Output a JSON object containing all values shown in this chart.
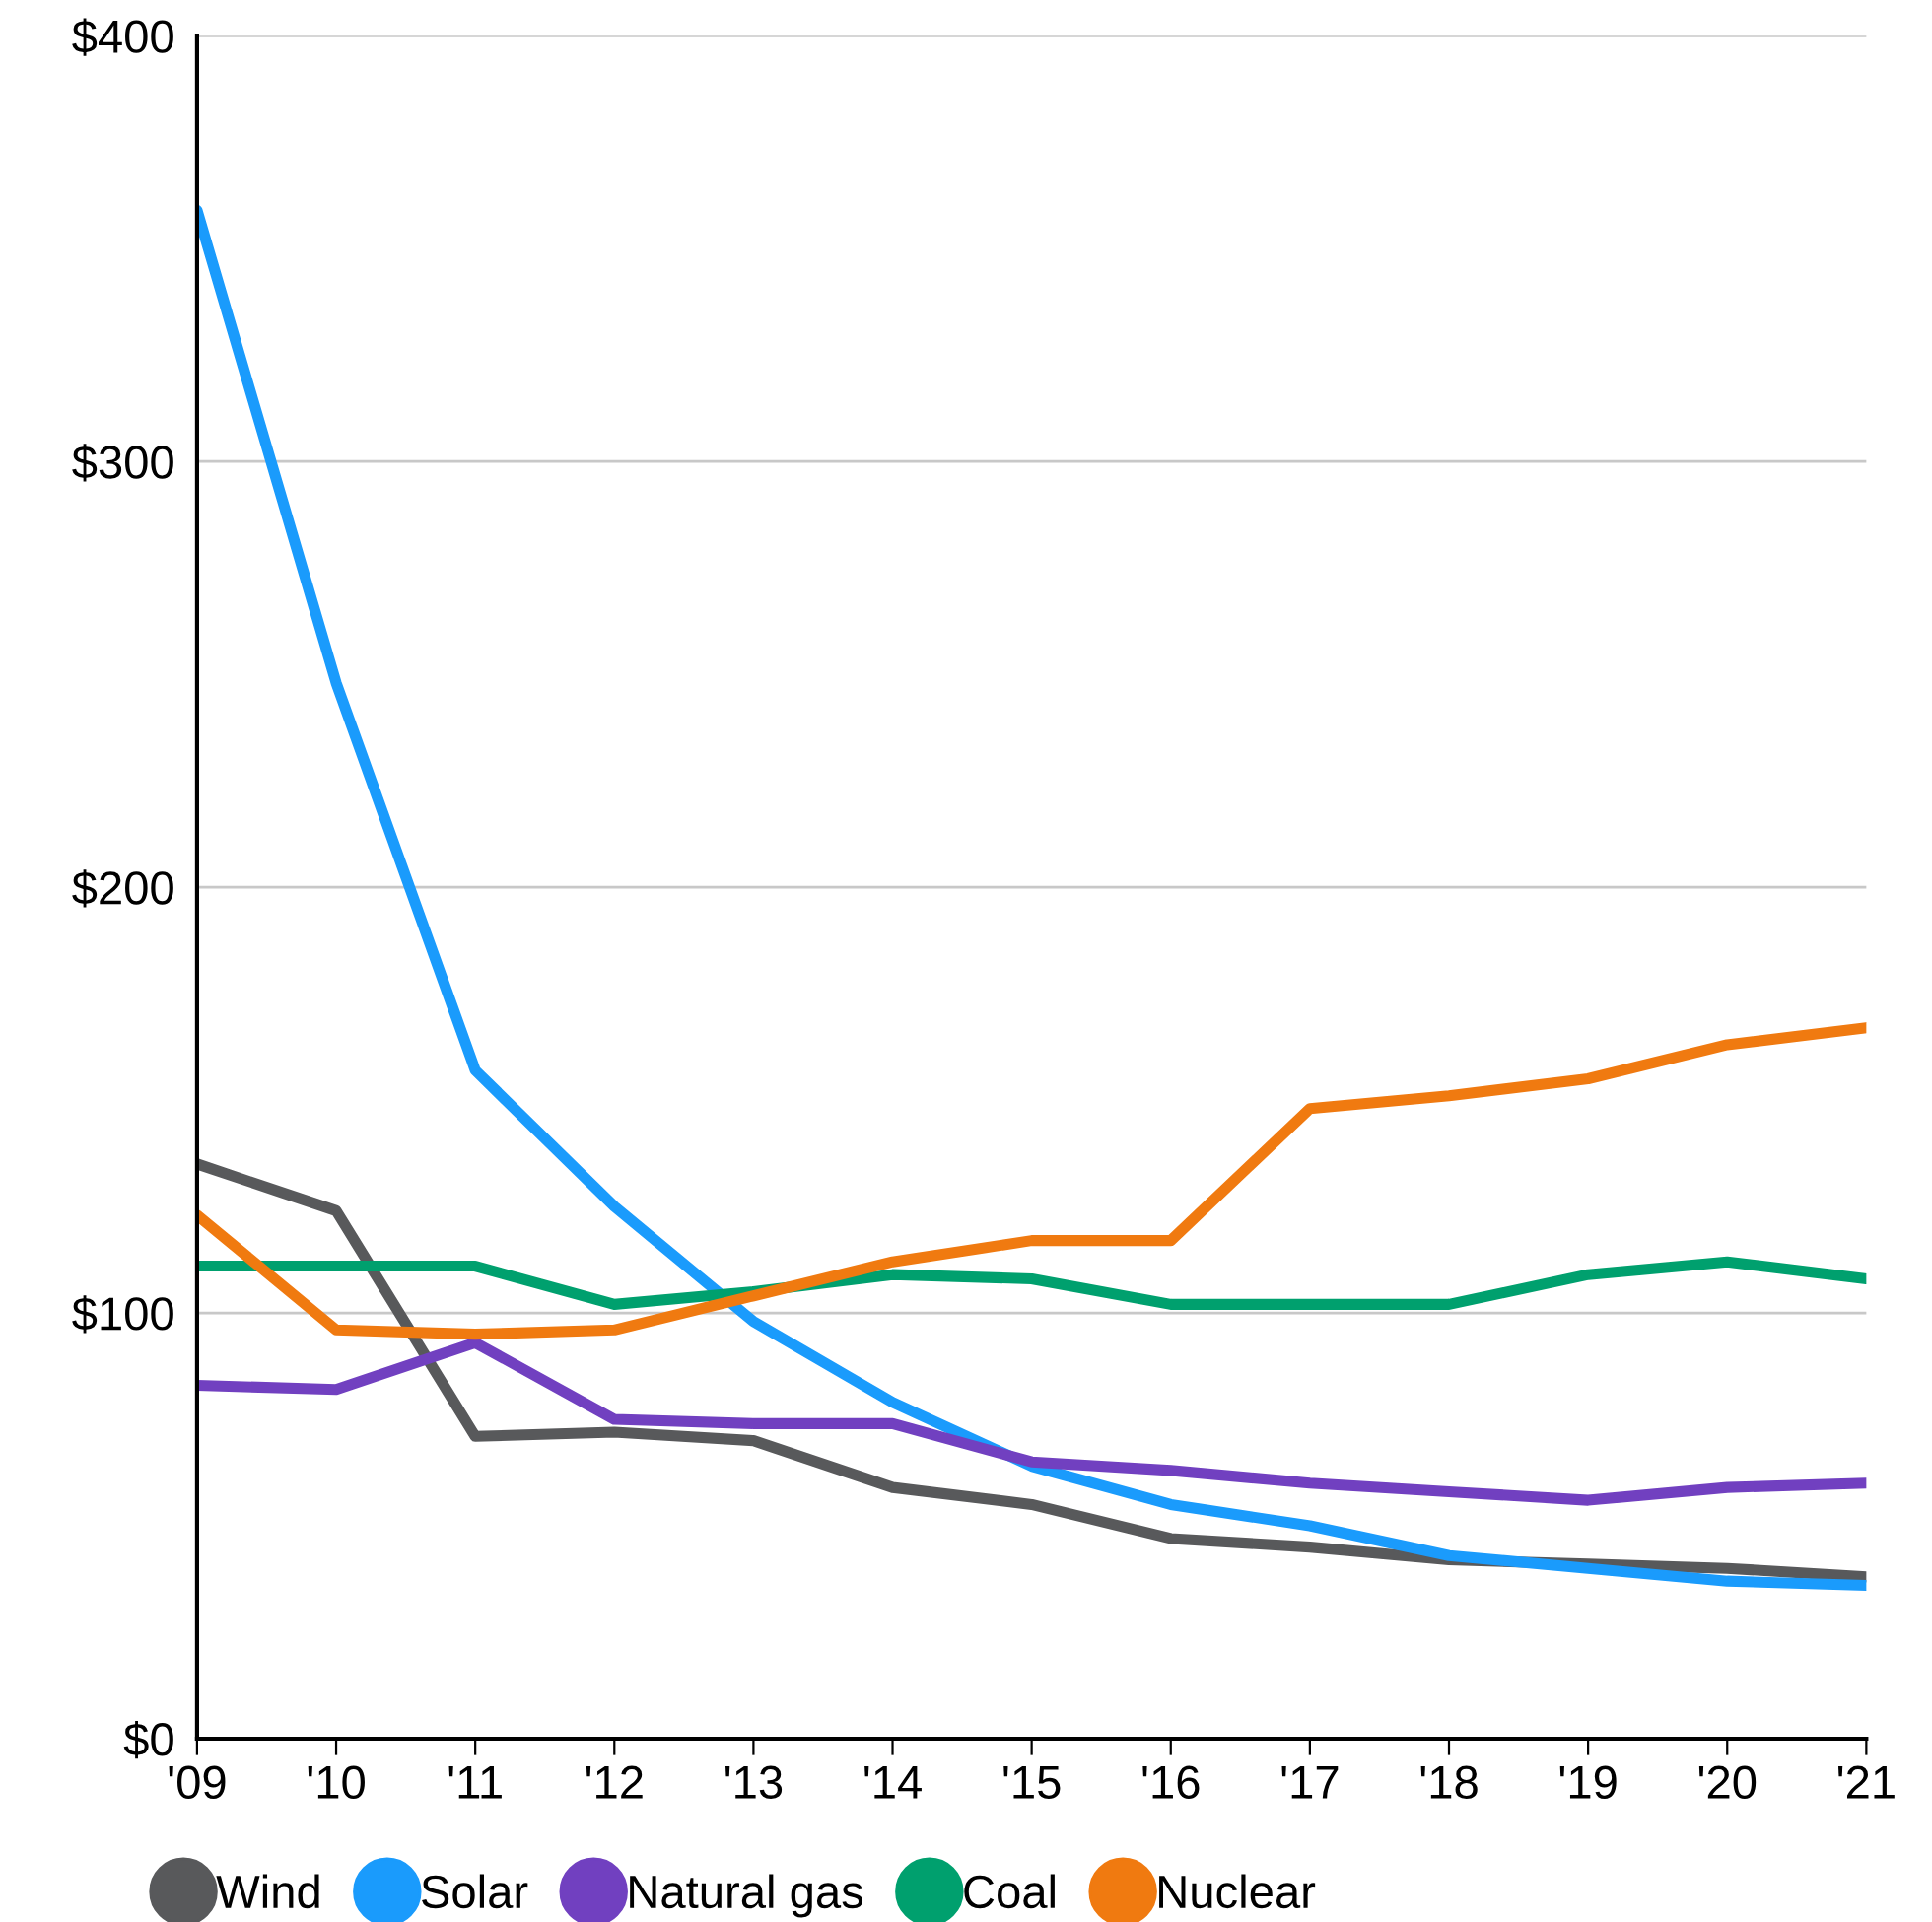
{
  "chart_data": {
    "type": "line",
    "categories": [
      "'09",
      "'10",
      "'11",
      "'12",
      "'13",
      "'14",
      "'15",
      "'16",
      "'17",
      "'18",
      "'19",
      "'20",
      "'21"
    ],
    "series": [
      {
        "name": "Wind",
        "color": "#58595b",
        "values": [
          135,
          124,
          71,
          72,
          70,
          59,
          55,
          47,
          45,
          42,
          41,
          40,
          38
        ]
      },
      {
        "name": "Solar",
        "color": "#1a9bfc",
        "values": [
          359,
          248,
          157,
          125,
          98,
          79,
          64,
          55,
          50,
          43,
          40,
          37,
          36
        ]
      },
      {
        "name": "Natural gas",
        "color": "#7140c0",
        "values": [
          83,
          82,
          93,
          75,
          74,
          74,
          65,
          63,
          60,
          58,
          56,
          59,
          60
        ]
      },
      {
        "name": "Coal",
        "color": "#00a06e",
        "values": [
          111,
          111,
          111,
          102,
          105,
          109,
          108,
          102,
          102,
          102,
          109,
          112,
          108
        ]
      },
      {
        "name": "Nuclear",
        "color": "#f07a10",
        "values": [
          123,
          96,
          95,
          96,
          104,
          112,
          117,
          117,
          148,
          151,
          155,
          163,
          167
        ]
      }
    ],
    "ylim": [
      0,
      400
    ],
    "yticks": [
      {
        "value": 0,
        "label": "$0"
      },
      {
        "value": 100,
        "label": "$100"
      },
      {
        "value": 200,
        "label": "$200"
      },
      {
        "value": 300,
        "label": "$300"
      },
      {
        "value": 400,
        "label": "$400"
      }
    ],
    "grid": "y",
    "legend": "bottom",
    "marker": "none",
    "line_style": "solid"
  }
}
